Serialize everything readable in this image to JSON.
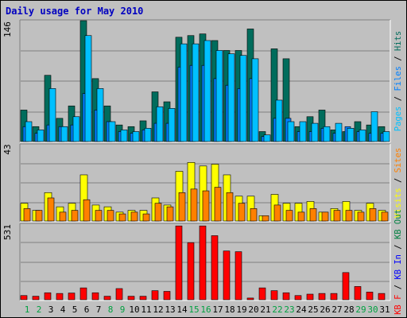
{
  "title": "Daily usage for May 2010",
  "colors": {
    "background": "#c0c0c0",
    "title": "#0000c0",
    "hits": "#006c5c",
    "files": "#0080ff",
    "pages": "#00c0ff",
    "visits": "#ffff00",
    "sites": "#ff8000",
    "kb_in": "#0000ff",
    "kb_out": "#008040",
    "kb_f": "#ff0000",
    "weekend_day": "#00a040",
    "weekday": "#000000"
  },
  "chart_data": [
    {
      "type": "bar",
      "name": "hits-files-pages",
      "ymax_label": "146",
      "ylim": [
        0,
        146
      ],
      "legend": [
        {
          "text": "Pages",
          "color": "#00c0ff"
        },
        {
          "text": " / ",
          "color": "#000000"
        },
        {
          "text": "Files",
          "color": "#0080ff"
        },
        {
          "text": " / ",
          "color": "#000000"
        },
        {
          "text": "Hits",
          "color": "#006c5c"
        }
      ],
      "categories": [
        "1",
        "2",
        "3",
        "4",
        "5",
        "6",
        "7",
        "8",
        "9",
        "10",
        "11",
        "12",
        "13",
        "14",
        "15",
        "16",
        "17",
        "18",
        "19",
        "20",
        "21",
        "22",
        "23",
        "24",
        "25",
        "26",
        "27",
        "28",
        "29",
        "30",
        "31"
      ],
      "series": [
        {
          "key": "Hits",
          "color": "#006c5c",
          "values": [
            38,
            18,
            80,
            28,
            43,
            146,
            76,
            43,
            20,
            18,
            25,
            60,
            48,
            126,
            128,
            130,
            122,
            110,
            110,
            136,
            12,
            112,
            100,
            18,
            30,
            38,
            14,
            12,
            24,
            20,
            18
          ]
        },
        {
          "key": "Files",
          "color": "#0080ff",
          "values": [
            18,
            10,
            20,
            18,
            20,
            58,
            38,
            24,
            12,
            10,
            14,
            22,
            22,
            90,
            92,
            92,
            76,
            68,
            64,
            76,
            6,
            28,
            28,
            12,
            12,
            16,
            10,
            18,
            12,
            10,
            10
          ]
        },
        {
          "key": "Pages",
          "color": "#00c0ff",
          "values": [
            24,
            14,
            64,
            18,
            30,
            128,
            64,
            24,
            14,
            12,
            16,
            42,
            40,
            118,
            118,
            122,
            110,
            106,
            104,
            100,
            8,
            50,
            24,
            24,
            22,
            18,
            22,
            16,
            14,
            36,
            12
          ]
        }
      ]
    },
    {
      "type": "bar",
      "name": "visits-sites",
      "ymax_label": "43",
      "ylim": [
        0,
        43
      ],
      "legend": [
        {
          "text": "Visits",
          "color": "#ffff00"
        },
        {
          "text": " / ",
          "color": "#000000"
        },
        {
          "text": "Sites",
          "color": "#ff8000"
        }
      ],
      "categories": [
        "1",
        "2",
        "3",
        "4",
        "5",
        "6",
        "7",
        "8",
        "9",
        "10",
        "11",
        "12",
        "13",
        "14",
        "15",
        "16",
        "17",
        "18",
        "19",
        "20",
        "21",
        "22",
        "23",
        "24",
        "25",
        "26",
        "27",
        "28",
        "29",
        "30",
        "31"
      ],
      "series": [
        {
          "key": "Visits",
          "color": "#ffff00",
          "values": [
            10,
            6,
            16,
            8,
            10,
            26,
            9,
            8,
            5,
            6,
            6,
            13,
            9,
            28,
            33,
            31,
            32,
            26,
            14,
            14,
            3,
            15,
            10,
            10,
            11,
            5,
            7,
            11,
            6,
            10,
            6
          ]
        },
        {
          "key": "Sites",
          "color": "#ff8000",
          "values": [
            7,
            6,
            13,
            5,
            6,
            12,
            6,
            6,
            4,
            5,
            4,
            10,
            8,
            16,
            18,
            17,
            19,
            16,
            10,
            7,
            3,
            9,
            6,
            5,
            7,
            5,
            6,
            6,
            5,
            7,
            5
          ]
        }
      ]
    },
    {
      "type": "bar",
      "name": "kb",
      "ymax_label": "531",
      "ylim": [
        0,
        531
      ],
      "legend": [
        {
          "text": "KB F",
          "color": "#ff0000"
        },
        {
          "text": " / ",
          "color": "#000000"
        },
        {
          "text": "KB In",
          "color": "#0000ff"
        },
        {
          "text": " / ",
          "color": "#000000"
        },
        {
          "text": "KB Out",
          "color": "#008040"
        }
      ],
      "categories": [
        "1",
        "2",
        "3",
        "4",
        "5",
        "6",
        "7",
        "8",
        "9",
        "10",
        "11",
        "12",
        "13",
        "14",
        "15",
        "16",
        "17",
        "18",
        "19",
        "20",
        "21",
        "22",
        "23",
        "24",
        "25",
        "26",
        "27",
        "28",
        "29",
        "30",
        "31"
      ],
      "series": [
        {
          "key": "KB F",
          "color": "#ff0000",
          "values": [
            30,
            25,
            50,
            45,
            48,
            85,
            50,
            25,
            80,
            25,
            25,
            65,
            60,
            530,
            410,
            530,
            460,
            350,
            345,
            12,
            85,
            65,
            50,
            30,
            40,
            45,
            45,
            195,
            95,
            55,
            45
          ]
        }
      ]
    }
  ],
  "x_days": [
    "1",
    "2",
    "3",
    "4",
    "5",
    "6",
    "7",
    "8",
    "9",
    "10",
    "11",
    "12",
    "13",
    "14",
    "15",
    "16",
    "17",
    "18",
    "19",
    "20",
    "21",
    "22",
    "23",
    "24",
    "25",
    "26",
    "27",
    "28",
    "29",
    "30",
    "31"
  ],
  "weekend_days": [
    "1",
    "2",
    "8",
    "9",
    "15",
    "16",
    "22",
    "23",
    "29",
    "30"
  ]
}
